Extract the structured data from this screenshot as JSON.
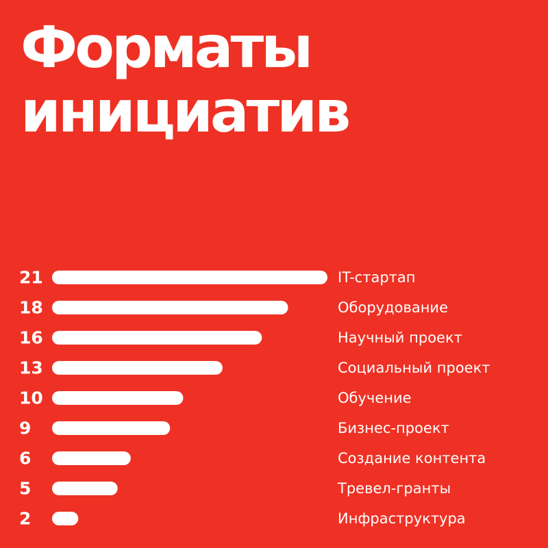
{
  "title_lines": [
    "Форматы",
    "инициатив"
  ],
  "colors": {
    "background": "#ee3124",
    "bar": "#ffffff",
    "text": "#ffffff"
  },
  "chart_data": {
    "type": "bar",
    "orientation": "horizontal",
    "categories": [
      "IT-стартап",
      "Оборудование",
      "Научный проект",
      "Социальный проект",
      "Обучение",
      "Бизнес-проект",
      "Создание контента",
      "Тревел-гранты",
      "Инфраструктура"
    ],
    "values": [
      21,
      18,
      16,
      13,
      10,
      9,
      6,
      5,
      2
    ],
    "xlim": [
      0,
      21
    ],
    "grid": false,
    "legend": "none"
  }
}
